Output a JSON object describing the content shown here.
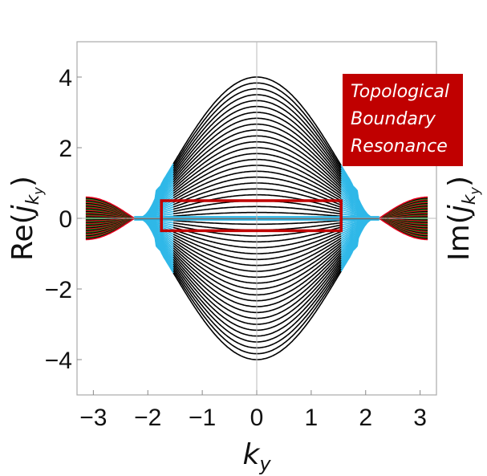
{
  "chart_data": {
    "type": "line",
    "xlabel": "k_y",
    "ylabel_left": "Re(j_{k_y})",
    "ylabel_right": "Im(j_{k_y})",
    "xlim": [
      -3.3,
      3.3
    ],
    "ylim": [
      -5,
      5
    ],
    "x_ticks": [
      -3,
      -2,
      -1,
      0,
      1,
      2,
      3
    ],
    "y_ticks": [
      -4,
      -2,
      0,
      2,
      4
    ],
    "x_tick_labels": [
      "−3",
      "−2",
      "−1",
      "0",
      "1",
      "2",
      "3"
    ],
    "y_tick_labels": [
      "−4",
      "−2",
      "0",
      "2",
      "4"
    ],
    "grid": false,
    "frame": "box",
    "bands": {
      "count": 24,
      "max_amplitude": 4.0,
      "gap_amplitude": 0.9,
      "crossing_k": 2.25,
      "edge_amplitude": 0.6,
      "colors_bulk": "#000000",
      "colors_edge_transition": "#2fb8e8",
      "colors_outer": [
        "#e3001b",
        "#1a7f1a",
        "#000000"
      ]
    },
    "annotation": {
      "lines": [
        "Topological",
        "Boundary",
        "Resonance"
      ],
      "box_color": "#c00000",
      "text_color": "#ffffff"
    },
    "highlight_box": {
      "k_range": [
        -1.75,
        1.55
      ],
      "re_range": [
        -0.35,
        0.5
      ],
      "color": "#c00000"
    }
  }
}
